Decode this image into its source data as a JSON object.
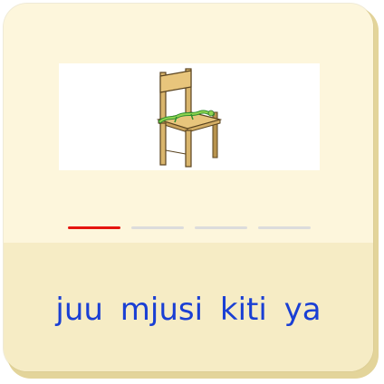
{
  "caption": {
    "words": [
      "juu",
      "mjusi",
      "kiti",
      "ya"
    ]
  },
  "progress": {
    "total": 4,
    "current": 1,
    "active_color": "#e5140f",
    "inactive_color": "#dcdcdc"
  },
  "illustration": {
    "icon": "chair-with-lizard-icon"
  },
  "colors": {
    "card_top": "#fdf6dc",
    "card_bottom": "#f6ecc5",
    "caption_text": "#1a3fd4"
  }
}
